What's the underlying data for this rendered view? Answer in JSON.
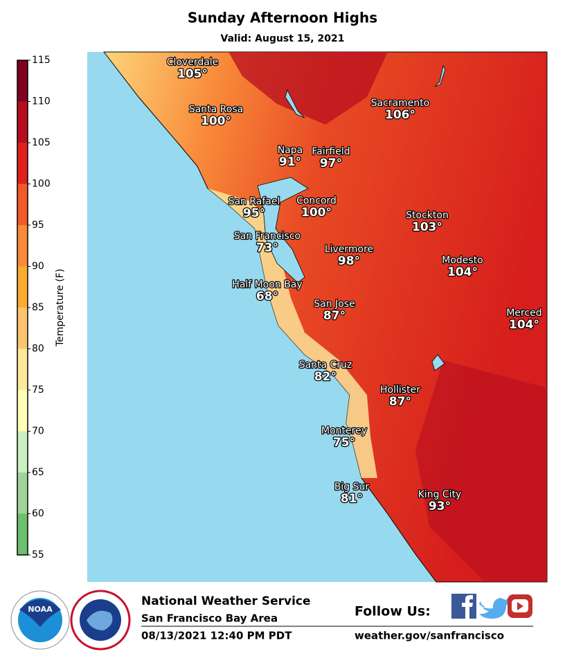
{
  "header": {
    "title": "Sunday Afternoon Highs",
    "subtitle": "Valid: August 15, 2021"
  },
  "colorbar": {
    "label": "Temperature (F)",
    "ticks": [
      55,
      60,
      65,
      70,
      75,
      80,
      85,
      90,
      95,
      100,
      105,
      110,
      115
    ],
    "colors": [
      "#6cbf6c",
      "#9ed49a",
      "#c9f0c0",
      "#ffffb8",
      "#fde89a",
      "#fdc470",
      "#fbab30",
      "#f98a3a",
      "#f25a2a",
      "#e0201c",
      "#b80d1f",
      "#800020"
    ]
  },
  "cities": [
    {
      "name": "Cloverdale",
      "temp": "105°"
    },
    {
      "name": "Santa Rosa",
      "temp": "100°"
    },
    {
      "name": "Napa",
      "temp": "91°"
    },
    {
      "name": "Fairfield",
      "temp": "97°"
    },
    {
      "name": "Sacramento",
      "temp": "106°"
    },
    {
      "name": "San Rafael",
      "temp": "95°"
    },
    {
      "name": "Concord",
      "temp": "100°"
    },
    {
      "name": "San Francisco",
      "temp": "73°"
    },
    {
      "name": "Stockton",
      "temp": "103°"
    },
    {
      "name": "Livermore",
      "temp": "98°"
    },
    {
      "name": "Modesto",
      "temp": "104°"
    },
    {
      "name": "Half Moon Bay",
      "temp": "68°"
    },
    {
      "name": "San Jose",
      "temp": "87°"
    },
    {
      "name": "Merced",
      "temp": "104°"
    },
    {
      "name": "Santa Cruz",
      "temp": "82°"
    },
    {
      "name": "Hollister",
      "temp": "87°"
    },
    {
      "name": "Monterey",
      "temp": "75°"
    },
    {
      "name": "Big Sur",
      "temp": "81°"
    },
    {
      "name": "King City",
      "temp": "93°"
    }
  ],
  "footer": {
    "agency": "National Weather Service",
    "office": "San Francisco Bay Area",
    "issued": "08/13/2021 12:40 PM PDT",
    "follow": "Follow Us:",
    "url": "weather.gov/sanfrancisco",
    "logo": "NOAA"
  }
}
